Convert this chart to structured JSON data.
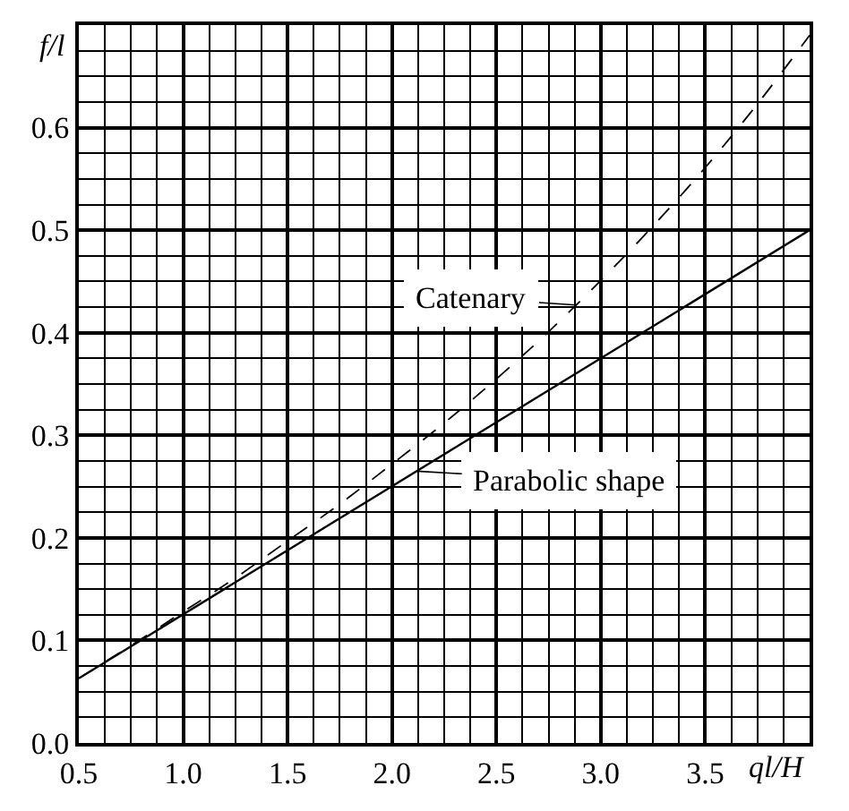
{
  "chart_data": {
    "type": "line",
    "xlabel": "ql/H",
    "ylabel": "f/l",
    "x": [
      0.5,
      0.75,
      1.0,
      1.25,
      1.5,
      1.75,
      2.0,
      2.25,
      2.5,
      2.75,
      3.0,
      3.25,
      3.5,
      3.75,
      4.0
    ],
    "series": [
      {
        "color": "#000000",
        "line_style": "dashed",
        "values": [
          0.063,
          0.095,
          0.128,
          0.161,
          0.197,
          0.233,
          0.272,
          0.312,
          0.355,
          0.401,
          0.451,
          0.504,
          0.561,
          0.623,
          0.69
        ]
      },
      {
        "color": "#000000",
        "line_style": "solid",
        "x": [
          0.5,
          4.0
        ],
        "values": [
          0.063,
          0.5
        ]
      }
    ],
    "annotations": [
      {
        "text": "Catenary",
        "x": 2.88,
        "y": 0.427
      },
      {
        "text": "Parabolic shape",
        "x": 2.12,
        "y": 0.265
      }
    ],
    "xlim": [
      0.5,
      4.0
    ],
    "xticks": [
      0.5,
      {
        "value": 1.0,
        "label": "1.0"
      },
      1.5,
      {
        "value": 2.0,
        "label": "2.0"
      },
      2.5,
      {
        "value": 3.0,
        "label": "3.0"
      },
      3.5
    ],
    "ylim": [
      0.0,
      0.7
    ],
    "yticks": [
      {
        "value": 0.0,
        "label": "0.0"
      },
      0.1,
      0.2,
      0.3,
      0.4,
      0.5,
      0.6
    ],
    "grid": true
  }
}
